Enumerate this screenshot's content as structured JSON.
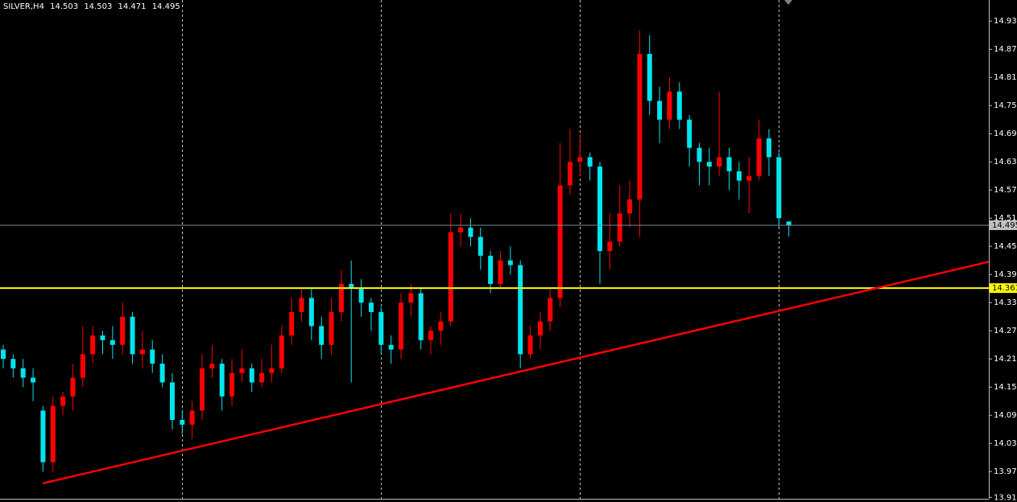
{
  "chart_data": {
    "type": "candlestick",
    "symbol": "SILVER,H4",
    "up_color": "#ff0000",
    "down_color": "#00e5ee",
    "ylim": [
      13.912,
      14.975
    ],
    "yticks": [
      {
        "value": 13.915,
        "label": "13.915"
      },
      {
        "value": 13.97,
        "label": "13.970"
      },
      {
        "value": 14.03,
        "label": "14.030"
      },
      {
        "value": 14.09,
        "label": "14.090"
      },
      {
        "value": 14.15,
        "label": "14.150"
      },
      {
        "value": 14.21,
        "label": "14.210"
      },
      {
        "value": 14.27,
        "label": "14.270"
      },
      {
        "value": 14.33,
        "label": "14.330"
      },
      {
        "value": 14.39,
        "label": "14.390"
      },
      {
        "value": 14.45,
        "label": "14.450"
      },
      {
        "value": 14.51,
        "label": "14.510"
      },
      {
        "value": 14.57,
        "label": "14.570"
      },
      {
        "value": 14.63,
        "label": "14.630"
      },
      {
        "value": 14.69,
        "label": "14.690"
      },
      {
        "value": 14.75,
        "label": "14.750"
      },
      {
        "value": 14.81,
        "label": "14.810"
      },
      {
        "value": 14.87,
        "label": "14.870"
      },
      {
        "value": 14.93,
        "label": "14.930"
      }
    ],
    "separators": [
      18,
      38,
      58,
      78
    ],
    "hline": {
      "value": 14.361,
      "color": "#ffff00"
    },
    "trendline": {
      "i0": 4,
      "p0": 13.945,
      "i1": 99.1,
      "p1": 14.417,
      "color": "#ff0000"
    },
    "ohlc": [
      [
        14.23,
        14.24,
        14.19,
        14.21
      ],
      [
        14.21,
        14.22,
        14.17,
        14.19
      ],
      [
        14.19,
        14.21,
        14.15,
        14.17
      ],
      [
        14.17,
        14.19,
        14.12,
        14.16
      ],
      [
        14.1,
        14.11,
        13.97,
        13.99
      ],
      [
        13.99,
        14.13,
        13.97,
        14.11
      ],
      [
        14.11,
        14.14,
        14.09,
        14.13
      ],
      [
        14.13,
        14.2,
        14.1,
        14.17
      ],
      [
        14.17,
        14.28,
        14.15,
        14.22
      ],
      [
        14.22,
        14.28,
        14.2,
        14.26
      ],
      [
        14.26,
        14.27,
        14.22,
        14.25
      ],
      [
        14.25,
        14.28,
        14.21,
        14.24
      ],
      [
        14.24,
        14.33,
        14.22,
        14.3
      ],
      [
        14.3,
        14.31,
        14.2,
        14.22
      ],
      [
        14.22,
        14.27,
        14.19,
        14.23
      ],
      [
        14.23,
        14.25,
        14.18,
        14.2
      ],
      [
        14.2,
        14.22,
        14.15,
        14.16
      ],
      [
        14.16,
        14.18,
        14.06,
        14.08
      ],
      [
        14.08,
        14.1,
        14.05,
        14.07
      ],
      [
        14.07,
        14.12,
        14.04,
        14.1
      ],
      [
        14.1,
        14.22,
        14.08,
        14.19
      ],
      [
        14.19,
        14.24,
        14.17,
        14.2
      ],
      [
        14.2,
        14.21,
        14.1,
        14.13
      ],
      [
        14.13,
        14.21,
        14.11,
        14.18
      ],
      [
        14.18,
        14.23,
        14.16,
        14.19
      ],
      [
        14.19,
        14.2,
        14.14,
        14.16
      ],
      [
        14.16,
        14.21,
        14.15,
        14.18
      ],
      [
        14.18,
        14.24,
        14.16,
        14.19
      ],
      [
        14.19,
        14.28,
        14.18,
        14.26
      ],
      [
        14.26,
        14.34,
        14.24,
        14.31
      ],
      [
        14.31,
        14.36,
        14.29,
        14.34
      ],
      [
        14.34,
        14.36,
        14.25,
        14.28
      ],
      [
        14.28,
        14.3,
        14.21,
        14.24
      ],
      [
        14.24,
        14.34,
        14.22,
        14.31
      ],
      [
        14.31,
        14.4,
        14.29,
        14.37
      ],
      [
        14.37,
        14.42,
        14.16,
        14.36
      ],
      [
        14.36,
        14.38,
        14.3,
        14.33
      ],
      [
        14.33,
        14.34,
        14.27,
        14.31
      ],
      [
        14.31,
        14.32,
        14.22,
        14.24
      ],
      [
        14.24,
        14.26,
        14.2,
        14.23
      ],
      [
        14.23,
        14.35,
        14.21,
        14.33
      ],
      [
        14.33,
        14.37,
        14.3,
        14.35
      ],
      [
        14.35,
        14.36,
        14.23,
        14.25
      ],
      [
        14.25,
        14.28,
        14.22,
        14.27
      ],
      [
        14.27,
        14.31,
        14.24,
        14.29
      ],
      [
        14.29,
        14.52,
        14.28,
        14.48
      ],
      [
        14.48,
        14.52,
        14.45,
        14.49
      ],
      [
        14.49,
        14.51,
        14.45,
        14.47
      ],
      [
        14.47,
        14.49,
        14.4,
        14.43
      ],
      [
        14.43,
        14.44,
        14.35,
        14.37
      ],
      [
        14.37,
        14.44,
        14.36,
        14.42
      ],
      [
        14.42,
        14.45,
        14.39,
        14.41
      ],
      [
        14.41,
        14.42,
        14.19,
        14.22
      ],
      [
        14.22,
        14.28,
        14.21,
        14.26
      ],
      [
        14.26,
        14.31,
        14.23,
        14.29
      ],
      [
        14.29,
        14.36,
        14.27,
        14.34
      ],
      [
        14.34,
        14.67,
        14.32,
        14.58
      ],
      [
        14.58,
        14.7,
        14.56,
        14.63
      ],
      [
        14.63,
        14.69,
        14.6,
        14.64
      ],
      [
        14.64,
        14.65,
        14.59,
        14.62
      ],
      [
        14.62,
        14.63,
        14.37,
        14.44
      ],
      [
        14.44,
        14.52,
        14.4,
        14.46
      ],
      [
        14.46,
        14.58,
        14.45,
        14.52
      ],
      [
        14.52,
        14.59,
        14.49,
        14.55
      ],
      [
        14.55,
        14.91,
        14.47,
        14.86
      ],
      [
        14.86,
        14.9,
        14.73,
        14.76
      ],
      [
        14.76,
        14.79,
        14.67,
        14.72
      ],
      [
        14.72,
        14.81,
        14.7,
        14.78
      ],
      [
        14.78,
        14.8,
        14.7,
        14.72
      ],
      [
        14.72,
        14.73,
        14.62,
        14.66
      ],
      [
        14.66,
        14.67,
        14.58,
        14.63
      ],
      [
        14.63,
        14.66,
        14.58,
        14.62
      ],
      [
        14.62,
        14.78,
        14.6,
        14.64
      ],
      [
        14.64,
        14.66,
        14.57,
        14.61
      ],
      [
        14.61,
        14.63,
        14.55,
        14.59
      ],
      [
        14.59,
        14.64,
        14.52,
        14.6
      ],
      [
        14.6,
        14.72,
        14.59,
        14.68
      ],
      [
        14.68,
        14.7,
        14.6,
        14.64
      ],
      [
        14.64,
        14.65,
        14.49,
        14.51
      ],
      [
        14.503,
        14.503,
        14.471,
        14.495
      ]
    ]
  }
}
